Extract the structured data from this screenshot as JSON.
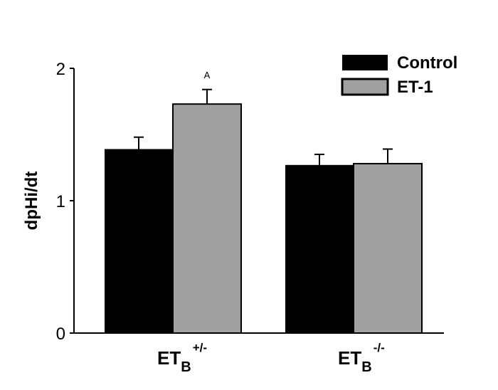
{
  "chart_data": {
    "type": "bar",
    "title": "",
    "xlabel": "",
    "ylabel": "dpHi/dt",
    "ylim": [
      0,
      2
    ],
    "yticks": [
      "0",
      "1",
      "2"
    ],
    "grid": false,
    "legend_position": "top-right",
    "categories": [
      "ETB+/-",
      "ETB-/-"
    ],
    "category_labels": [
      {
        "main": "ET",
        "sub": "B",
        "sup": "+/-"
      },
      {
        "main": "ET",
        "sub": "B",
        "sup": "-/-"
      }
    ],
    "series": [
      {
        "name": "Control",
        "color": "#000000",
        "values": [
          1.39,
          1.27
        ],
        "errors": [
          0.09,
          0.08
        ]
      },
      {
        "name": "ET-1",
        "color": "#a0a0a0",
        "values": [
          1.73,
          1.28
        ],
        "errors": [
          0.11,
          0.11
        ]
      }
    ],
    "annotations": [
      {
        "text": "A",
        "category": "ETB+/-",
        "series": "ET-1"
      }
    ]
  }
}
